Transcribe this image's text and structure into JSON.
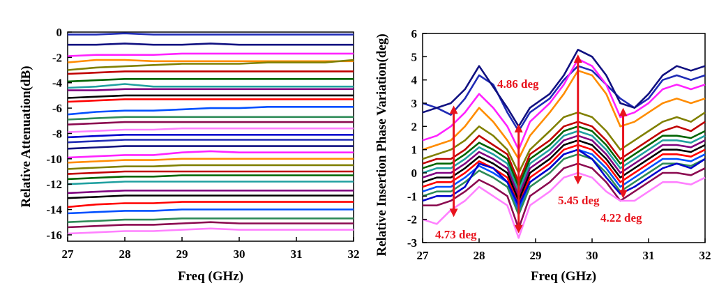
{
  "colors": {
    "annotation": "#e8141e",
    "palette": [
      "#1f2bb5",
      "#101080",
      "#ff22ff",
      "#ff8c00",
      "#808000",
      "#c00000",
      "#006400",
      "#20a0a0",
      "#800080",
      "#000000",
      "#ff0000",
      "#0050ff",
      "#2e8b57",
      "#8b0a50",
      "#ff80ff",
      "#0000cd"
    ]
  },
  "chart_data": [
    {
      "type": "line",
      "title": "",
      "xlabel": "Freq (GHz)",
      "ylabel": "Relative Attenuation(dB)",
      "xlim": [
        27,
        32
      ],
      "ylim": [
        -16.5,
        0
      ],
      "xticks": [
        "27",
        "28",
        "29",
        "30",
        "31",
        "32"
      ],
      "yticks": [
        "0",
        "-2",
        "-4",
        "-6",
        "-8",
        "-10",
        "-12",
        "-14",
        "-16"
      ],
      "grid": false,
      "legend": "none",
      "x": [
        27,
        27.5,
        28,
        28.5,
        29,
        29.5,
        30,
        30.5,
        31,
        31.5,
        32
      ],
      "series": [
        {
          "values": [
            -0.2,
            -0.2,
            -0.1,
            -0.2,
            -0.2,
            -0.2,
            -0.2,
            -0.2,
            -0.2,
            -0.2,
            -0.2
          ]
        },
        {
          "values": [
            -1.0,
            -1.0,
            -0.9,
            -1.0,
            -1.0,
            -0.9,
            -1.0,
            -1.0,
            -1.0,
            -1.0,
            -1.0
          ]
        },
        {
          "values": [
            -1.9,
            -1.8,
            -1.8,
            -1.8,
            -1.7,
            -1.7,
            -1.7,
            -1.7,
            -1.7,
            -1.7,
            -1.7
          ]
        },
        {
          "values": [
            -2.4,
            -2.2,
            -2.2,
            -2.3,
            -2.3,
            -2.3,
            -2.3,
            -2.3,
            -2.3,
            -2.3,
            -2.3
          ]
        },
        {
          "values": [
            -3.0,
            -2.8,
            -2.7,
            -2.6,
            -2.5,
            -2.5,
            -2.5,
            -2.4,
            -2.4,
            -2.4,
            -2.2
          ]
        },
        {
          "values": [
            -3.3,
            -3.2,
            -3.1,
            -3.1,
            -3.1,
            -3.1,
            -3.1,
            -3.1,
            -3.1,
            -3.1,
            -3.1
          ]
        },
        {
          "values": [
            -3.9,
            -3.8,
            -3.7,
            -3.7,
            -3.7,
            -3.7,
            -3.7,
            -3.7,
            -3.7,
            -3.7,
            -3.7
          ]
        },
        {
          "values": [
            -4.4,
            -4.3,
            -4.1,
            -4.3,
            -4.3,
            -4.3,
            -4.3,
            -4.3,
            -4.3,
            -4.3,
            -4.3
          ]
        },
        {
          "values": [
            -4.6,
            -4.6,
            -4.5,
            -4.5,
            -4.5,
            -4.5,
            -4.5,
            -4.5,
            -4.5,
            -4.5,
            -4.5
          ]
        },
        {
          "values": [
            -5.2,
            -5.1,
            -5.0,
            -5.0,
            -5.0,
            -5.0,
            -5.0,
            -5.0,
            -5.0,
            -5.0,
            -5.0
          ]
        },
        {
          "values": [
            -5.5,
            -5.4,
            -5.3,
            -5.3,
            -5.3,
            -5.3,
            -5.3,
            -5.3,
            -5.3,
            -5.3,
            -5.3
          ]
        },
        {
          "values": [
            -6.5,
            -6.3,
            -6.2,
            -6.2,
            -6.1,
            -6.0,
            -6.0,
            -5.9,
            -5.9,
            -5.9,
            -5.9
          ]
        },
        {
          "values": [
            -6.9,
            -6.8,
            -6.7,
            -6.7,
            -6.7,
            -6.7,
            -6.7,
            -6.7,
            -6.7,
            -6.7,
            -6.7
          ]
        },
        {
          "values": [
            -7.3,
            -7.2,
            -7.1,
            -7.1,
            -7.1,
            -7.1,
            -7.1,
            -7.1,
            -7.1,
            -7.1,
            -7.1
          ]
        },
        {
          "values": [
            -7.9,
            -7.8,
            -7.7,
            -7.7,
            -7.6,
            -7.6,
            -7.6,
            -7.6,
            -7.6,
            -7.6,
            -7.6
          ]
        },
        {
          "values": [
            -8.3,
            -8.2,
            -8.1,
            -8.1,
            -8.1,
            -8.1,
            -8.1,
            -8.1,
            -8.1,
            -8.1,
            -8.1
          ]
        },
        {
          "values": [
            -8.7,
            -8.6,
            -8.5,
            -8.5,
            -8.5,
            -8.5,
            -8.5,
            -8.5,
            -8.5,
            -8.5,
            -8.5
          ]
        },
        {
          "values": [
            -9.2,
            -9.1,
            -9.0,
            -9.0,
            -9.0,
            -9.0,
            -9.0,
            -9.0,
            -9.0,
            -9.0,
            -9.0
          ]
        },
        {
          "values": [
            -9.9,
            -9.8,
            -9.7,
            -9.7,
            -9.5,
            -9.4,
            -9.5,
            -9.5,
            -9.5,
            -9.5,
            -9.5
          ]
        },
        {
          "values": [
            -10.3,
            -10.2,
            -10.1,
            -10.1,
            -10.0,
            -10.0,
            -10.0,
            -10.0,
            -10.0,
            -10.0,
            -10.0
          ]
        },
        {
          "values": [
            -10.8,
            -10.7,
            -10.6,
            -10.6,
            -10.5,
            -10.5,
            -10.5,
            -10.5,
            -10.5,
            -10.5,
            -10.5
          ]
        },
        {
          "values": [
            -11.2,
            -11.1,
            -11.0,
            -11.0,
            -11.0,
            -11.0,
            -11.0,
            -11.0,
            -11.0,
            -11.0,
            -11.0
          ]
        },
        {
          "values": [
            -11.6,
            -11.5,
            -11.4,
            -11.4,
            -11.3,
            -11.3,
            -11.3,
            -11.3,
            -11.3,
            -11.3,
            -11.3
          ]
        },
        {
          "values": [
            -12.0,
            -11.9,
            -11.8,
            -11.8,
            -11.8,
            -11.8,
            -11.8,
            -11.8,
            -11.8,
            -11.8,
            -11.8
          ]
        },
        {
          "values": [
            -12.7,
            -12.6,
            -12.5,
            -12.5,
            -12.5,
            -12.5,
            -12.5,
            -12.5,
            -12.5,
            -12.5,
            -12.5
          ]
        },
        {
          "values": [
            -13.1,
            -13.0,
            -12.9,
            -12.9,
            -12.9,
            -12.9,
            -12.9,
            -12.9,
            -12.9,
            -12.9,
            -12.9
          ]
        },
        {
          "values": [
            -13.8,
            -13.6,
            -13.5,
            -13.5,
            -13.4,
            -13.4,
            -13.4,
            -13.4,
            -13.4,
            -13.4,
            -13.4
          ]
        },
        {
          "values": [
            -14.3,
            -14.2,
            -14.1,
            -14.1,
            -14.0,
            -14.0,
            -14.0,
            -14.0,
            -14.0,
            -14.0,
            -14.0
          ]
        },
        {
          "values": [
            -15.0,
            -14.9,
            -14.8,
            -14.8,
            -14.7,
            -14.7,
            -14.7,
            -14.7,
            -14.7,
            -14.7,
            -14.7
          ]
        },
        {
          "values": [
            -15.4,
            -15.3,
            -15.2,
            -15.2,
            -15.1,
            -15.0,
            -15.1,
            -15.1,
            -15.1,
            -15.1,
            -15.1
          ]
        },
        {
          "values": [
            -15.9,
            -15.8,
            -15.7,
            -15.7,
            -15.6,
            -15.5,
            -15.6,
            -15.6,
            -15.6,
            -15.6,
            -15.6
          ]
        }
      ]
    },
    {
      "type": "line",
      "title": "",
      "xlabel": "Freq (GHz)",
      "ylabel": "Relative Insertion Phase Variation(deg)",
      "xlim": [
        27,
        32
      ],
      "ylim": [
        -3,
        6
      ],
      "xticks": [
        "27",
        "28",
        "29",
        "30",
        "31",
        "32"
      ],
      "yticks": [
        "6",
        "5",
        "4",
        "3",
        "2",
        "1",
        "0",
        "-1",
        "-2",
        "-3"
      ],
      "grid": false,
      "legend": "none",
      "x": [
        27,
        27.25,
        27.5,
        27.75,
        28,
        28.25,
        28.5,
        28.7,
        28.9,
        29.25,
        29.5,
        29.75,
        30,
        30.25,
        30.5,
        30.75,
        31,
        31.25,
        31.5,
        31.75,
        32
      ],
      "series": [
        {
          "values": [
            3.0,
            2.8,
            2.5,
            3.2,
            4.2,
            3.8,
            2.6,
            1.8,
            2.6,
            3.2,
            4.0,
            4.6,
            4.4,
            3.8,
            3.2,
            2.8,
            3.2,
            4.0,
            4.2,
            4.0,
            4.2
          ]
        },
        {
          "values": [
            2.6,
            2.8,
            3.0,
            3.6,
            4.6,
            3.7,
            2.8,
            2.0,
            2.8,
            3.4,
            4.2,
            5.3,
            5.0,
            4.2,
            3.0,
            2.8,
            3.4,
            4.2,
            4.6,
            4.4,
            4.6
          ]
        },
        {
          "values": [
            1.4,
            1.6,
            2.0,
            2.6,
            3.4,
            2.8,
            2.0,
            1.0,
            2.2,
            3.0,
            3.8,
            4.9,
            4.6,
            3.8,
            2.4,
            2.6,
            3.0,
            3.6,
            3.8,
            3.6,
            3.8
          ]
        },
        {
          "values": [
            1.0,
            1.2,
            1.4,
            2.0,
            2.8,
            2.2,
            1.4,
            0.6,
            1.6,
            2.6,
            3.4,
            4.4,
            4.2,
            3.4,
            2.0,
            2.2,
            2.6,
            3.0,
            3.2,
            3.0,
            3.2
          ]
        },
        {
          "values": [
            0.6,
            0.8,
            1.0,
            1.4,
            2.0,
            1.6,
            1.0,
            0.0,
            1.0,
            1.8,
            2.4,
            2.6,
            2.4,
            1.8,
            1.0,
            1.4,
            1.8,
            2.2,
            2.4,
            2.2,
            2.6
          ]
        },
        {
          "values": [
            0.4,
            0.6,
            0.6,
            1.0,
            1.6,
            1.2,
            0.8,
            -0.4,
            0.8,
            1.4,
            2.0,
            2.2,
            2.0,
            1.4,
            0.6,
            1.0,
            1.4,
            1.8,
            2.0,
            1.8,
            2.2
          ]
        },
        {
          "values": [
            0.2,
            0.4,
            0.4,
            0.8,
            1.3,
            1.0,
            0.6,
            -0.6,
            0.6,
            1.2,
            1.8,
            2.0,
            1.8,
            1.2,
            0.4,
            0.8,
            1.2,
            1.6,
            1.6,
            1.5,
            1.8
          ]
        },
        {
          "values": [
            0.0,
            0.2,
            0.2,
            0.6,
            1.1,
            0.8,
            0.4,
            -0.8,
            0.4,
            1.0,
            1.6,
            1.8,
            1.6,
            1.0,
            0.2,
            0.6,
            1.0,
            1.4,
            1.4,
            1.3,
            1.6
          ]
        },
        {
          "values": [
            -0.2,
            0.0,
            0.0,
            0.4,
            0.9,
            0.6,
            0.2,
            -1.0,
            0.2,
            0.8,
            1.4,
            1.6,
            1.4,
            0.8,
            0.0,
            0.4,
            0.8,
            1.2,
            1.2,
            1.1,
            1.4
          ]
        },
        {
          "values": [
            -0.4,
            -0.2,
            -0.2,
            0.2,
            0.7,
            0.4,
            0.0,
            -1.2,
            0.0,
            0.6,
            1.2,
            1.4,
            1.2,
            0.6,
            -0.2,
            0.2,
            0.6,
            1.0,
            1.0,
            0.9,
            1.2
          ]
        },
        {
          "values": [
            -0.6,
            -0.4,
            -0.4,
            0.0,
            0.5,
            0.2,
            -0.2,
            -1.4,
            -0.2,
            0.4,
            1.0,
            1.2,
            1.0,
            0.4,
            -0.4,
            0.0,
            0.4,
            0.8,
            0.8,
            0.7,
            1.0
          ]
        },
        {
          "values": [
            -0.8,
            -0.6,
            -0.6,
            -0.2,
            0.3,
            0.0,
            -0.4,
            -1.6,
            -0.4,
            0.2,
            0.8,
            1.0,
            0.8,
            0.2,
            -0.6,
            -0.2,
            0.2,
            0.6,
            0.6,
            0.5,
            0.8
          ]
        },
        {
          "values": [
            -1.0,
            -0.8,
            -0.8,
            -0.4,
            0.1,
            -0.2,
            -0.6,
            -1.8,
            -0.6,
            0.0,
            0.6,
            0.8,
            0.6,
            0.0,
            -0.8,
            -0.4,
            0.0,
            0.4,
            0.4,
            0.3,
            0.6
          ]
        },
        {
          "values": [
            -1.4,
            -1.4,
            -1.2,
            -0.8,
            -0.3,
            -0.6,
            -1.0,
            -2.4,
            -1.0,
            -0.4,
            0.2,
            0.4,
            0.2,
            -0.4,
            -1.2,
            -0.8,
            -0.4,
            0.0,
            0.0,
            -0.1,
            0.2
          ]
        },
        {
          "values": [
            -2.0,
            -2.2,
            -1.6,
            -1.2,
            -0.6,
            -1.0,
            -1.4,
            -2.8,
            -1.4,
            -0.8,
            -0.2,
            0.0,
            -0.2,
            -0.8,
            -1.2,
            -1.2,
            -0.8,
            -0.4,
            -0.4,
            -0.5,
            -0.2
          ]
        },
        {
          "values": [
            -1.2,
            -1.0,
            -1.0,
            -0.6,
            0.4,
            0.2,
            -0.4,
            -1.4,
            -0.4,
            0.2,
            0.8,
            1.0,
            0.6,
            -0.2,
            -0.9,
            -0.6,
            -0.2,
            0.2,
            0.4,
            0.2,
            0.6
          ]
        }
      ],
      "annotations": [
        "4.86 deg",
        "4.73 deg",
        "5.45 deg",
        "4.22 deg"
      ]
    }
  ]
}
